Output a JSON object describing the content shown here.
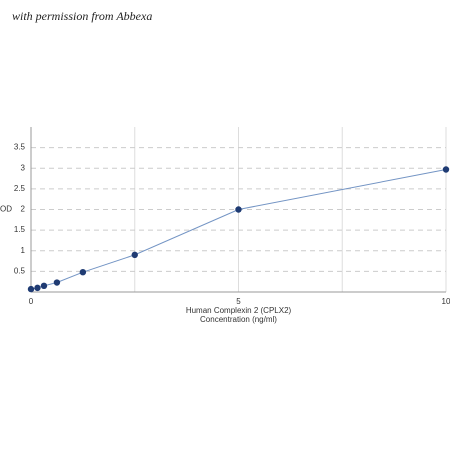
{
  "watermark": "with permission from Abbexa",
  "chart_data": {
    "type": "line",
    "ylabel": "OD",
    "xlabel": [
      "Human Complexin 2 (CPLX2)",
      "Concentration (ng/ml)"
    ],
    "x": [
      0,
      0.156,
      0.3125,
      0.625,
      1.25,
      2.5,
      5,
      10
    ],
    "series": [
      {
        "color": "#1f3b73",
        "line_color": "#7394c4",
        "values": [
          0.07,
          0.1,
          0.15,
          0.23,
          0.48,
          0.9,
          2.0,
          2.97
        ]
      }
    ],
    "xlim": [
      0,
      10
    ],
    "xticks": [
      0,
      5,
      10
    ],
    "xgrid": [
      0,
      2.5,
      5,
      7.5,
      10
    ],
    "ylim": [
      0,
      4
    ],
    "yticks": [
      0.5,
      1,
      1.5,
      2,
      2.5,
      3,
      3.5
    ],
    "grid": true
  }
}
